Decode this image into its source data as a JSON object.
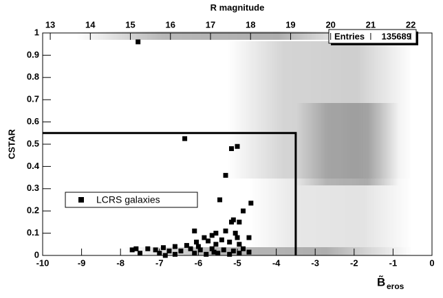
{
  "chart_data": {
    "type": "scatter",
    "top_axis_label": "R magnitude",
    "y_label": "CSTAR",
    "x_label": "B̃",
    "x_label_sub": "eros",
    "xlim": [
      -10,
      0
    ],
    "xticks": [
      -10,
      -9,
      -8,
      -7,
      -6,
      -5,
      -4,
      -3,
      -2,
      -1,
      0
    ],
    "ylim": [
      0,
      1
    ],
    "yticks": [
      0,
      0.1,
      0.2,
      0.3,
      0.4,
      0.5,
      0.6,
      0.7,
      0.8,
      0.9,
      1
    ],
    "x2lim": [
      12.81,
      22.53
    ],
    "x2ticks": [
      13,
      14,
      15,
      16,
      17,
      18,
      19,
      20,
      21,
      22
    ],
    "cut": {
      "x": -3.5,
      "y": 0.55
    },
    "stats": {
      "label": "Entries",
      "value": 135689
    },
    "series": [
      {
        "name": "LCRS galaxies",
        "color": "#000000",
        "x": [
          -7.55,
          -6.35,
          -5.15,
          -5.0,
          -5.3,
          -5.45,
          -4.65,
          -4.85,
          -5.1,
          -5.15,
          -4.95,
          -6.1,
          -5.55,
          -5.3,
          -5.65,
          -5.05,
          -5.0,
          -4.7,
          -5.85,
          -6.05,
          -5.4,
          -5.75,
          -5.2,
          -4.95,
          -5.55,
          -6.3,
          -6.6,
          -6.9,
          -7.6,
          -7.3,
          -7.7,
          -7.1,
          -6.75,
          -6.45,
          -6.2,
          -5.95,
          -5.65,
          -5.35,
          -5.1,
          -4.85,
          -4.7,
          -7.5,
          -7.0,
          -6.6,
          -6.1,
          -5.8,
          -5.5,
          -5.2,
          -4.95,
          -6.85,
          -6.0,
          -5.6
        ],
        "values": [
          0.96,
          0.525,
          0.48,
          0.49,
          0.36,
          0.25,
          0.235,
          0.2,
          0.16,
          0.15,
          0.15,
          0.11,
          0.1,
          0.11,
          0.09,
          0.1,
          0.08,
          0.08,
          0.08,
          0.06,
          0.07,
          0.065,
          0.06,
          0.05,
          0.05,
          0.045,
          0.04,
          0.035,
          0.03,
          0.03,
          0.025,
          0.025,
          0.02,
          0.02,
          0.03,
          0.025,
          0.03,
          0.025,
          0.02,
          0.03,
          0.015,
          0.01,
          0.01,
          0.005,
          0.01,
          0.005,
          0.01,
          0.005,
          0.01,
          0.0,
          0.04,
          0.015
        ]
      }
    ]
  }
}
